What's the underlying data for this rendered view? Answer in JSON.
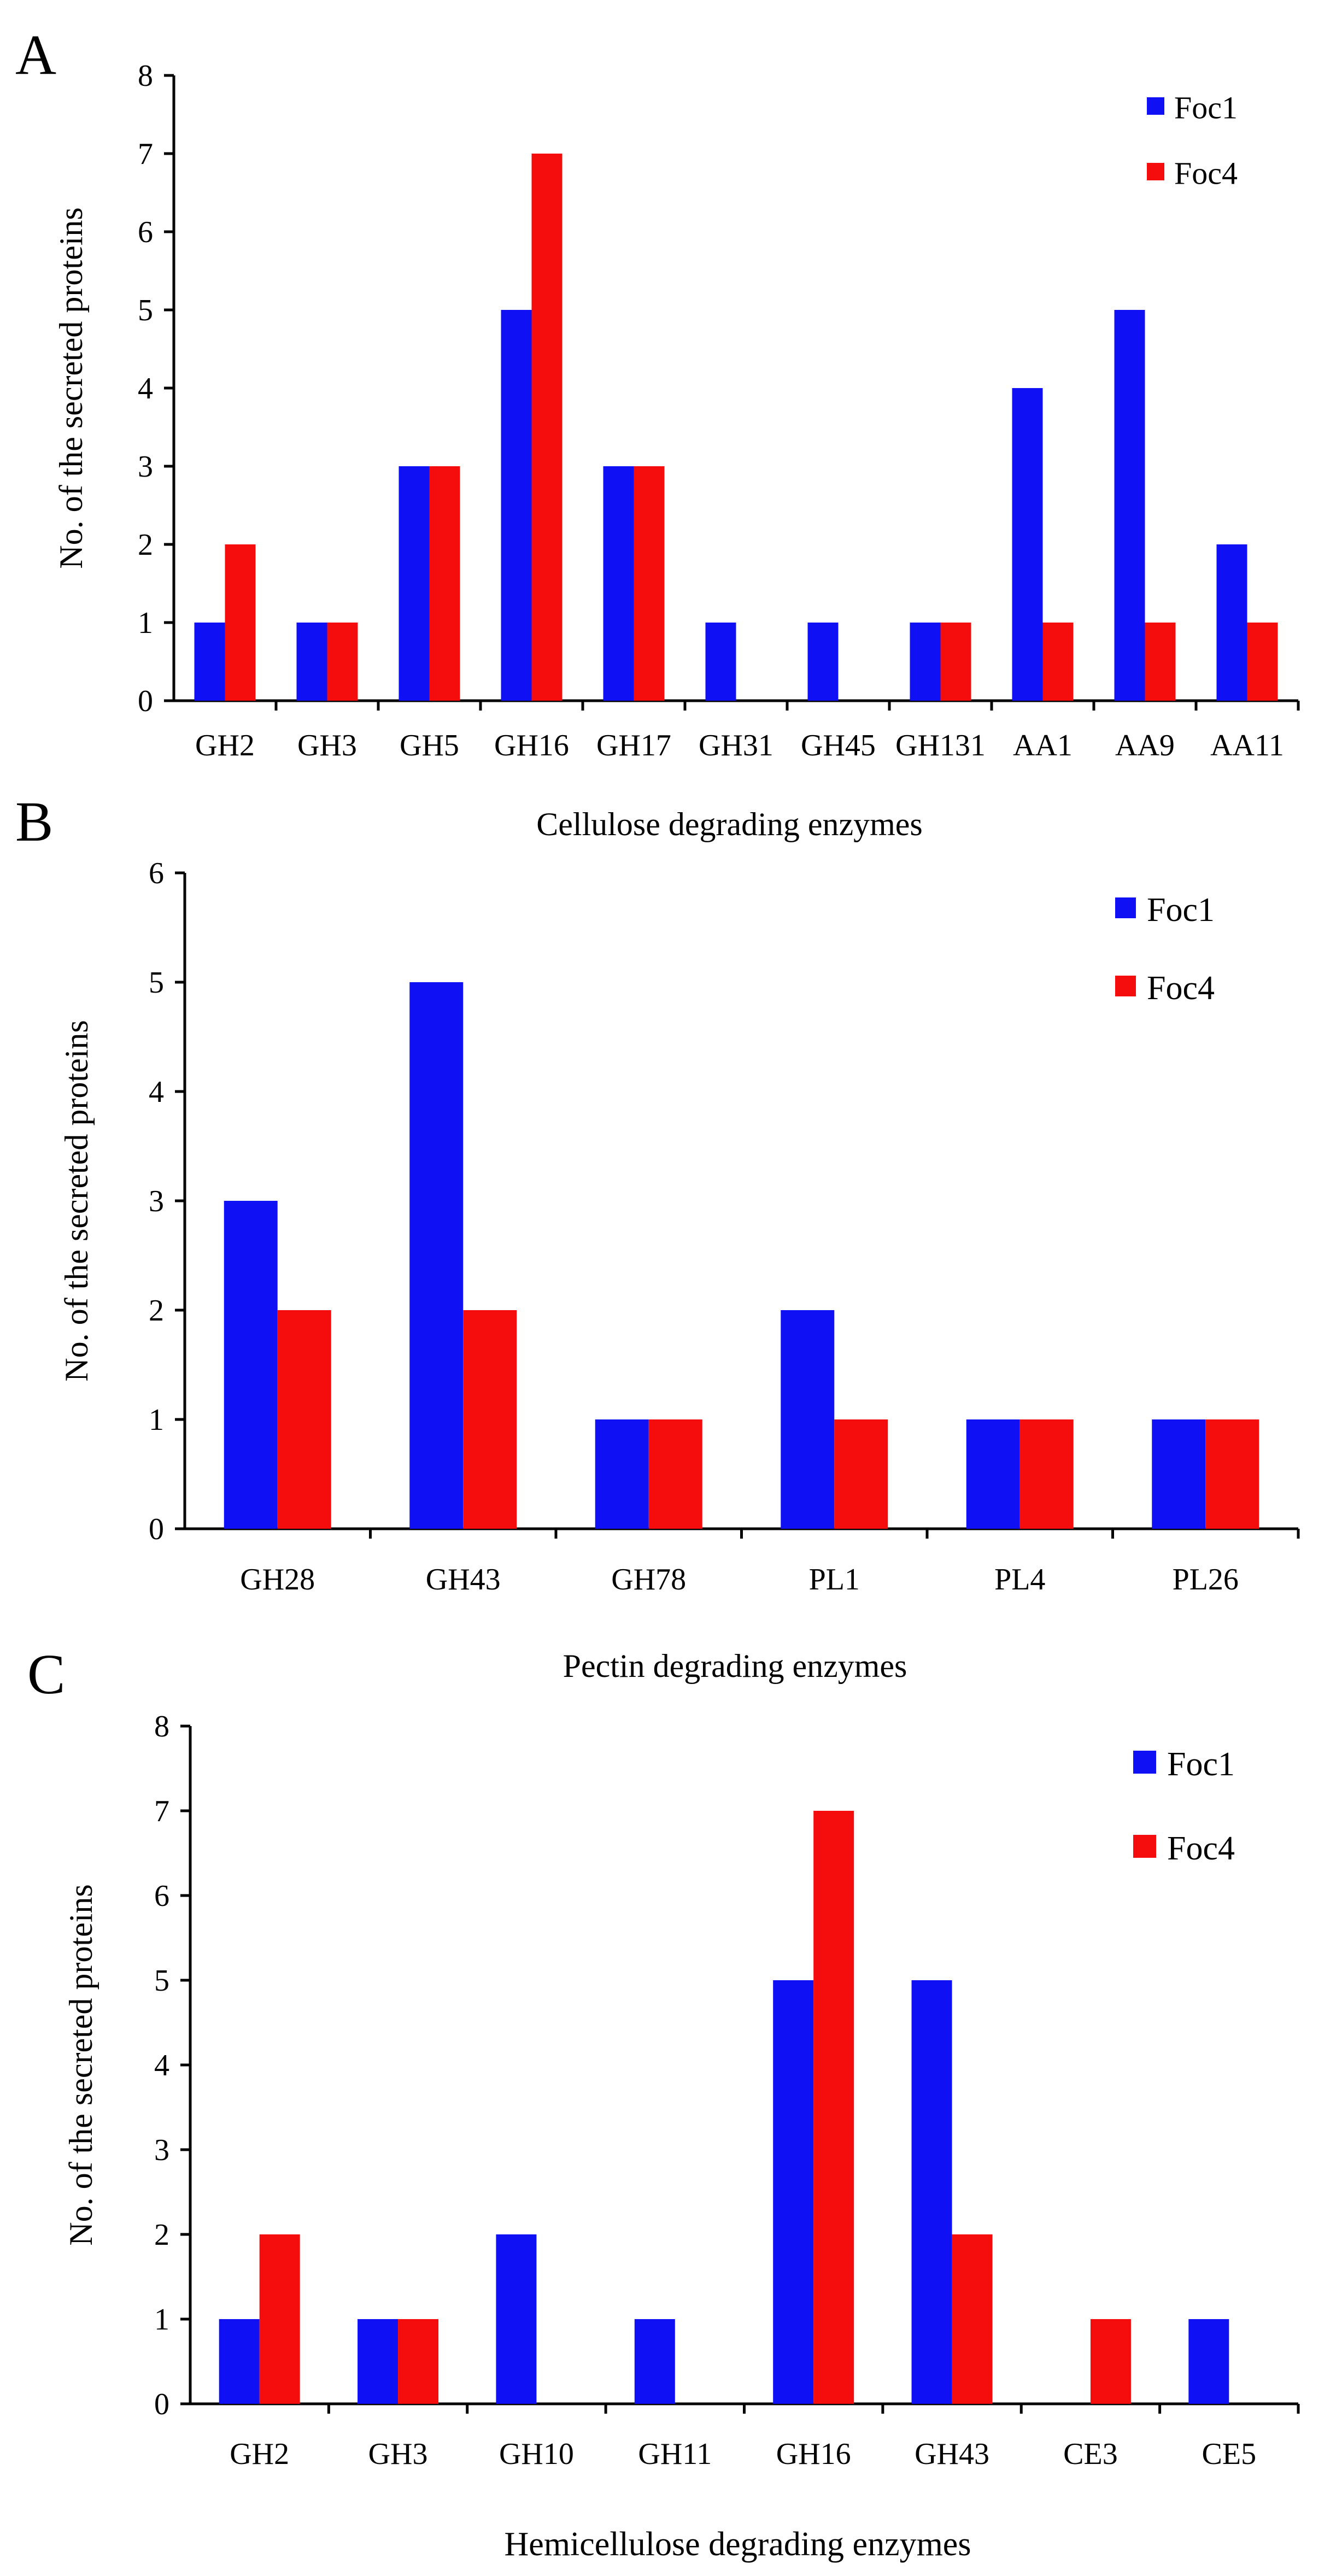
{
  "figure": {
    "colors": {
      "foc1": "#1010F5",
      "foc4": "#F50D0D",
      "axis": "#000000"
    }
  },
  "chart_data": [
    {
      "panel_label": "A",
      "type": "bar",
      "xlabel": "Cellulose degrading enzymes",
      "ylabel": "No. of the secreted proteins",
      "ylim": [
        0,
        8
      ],
      "yticks": [
        "0",
        "1",
        "2",
        "3",
        "4",
        "5",
        "6",
        "7",
        "8"
      ],
      "legend_position": "top-right",
      "categories": [
        "GH2",
        "GH3",
        "GH5",
        "GH16",
        "GH17",
        "GH31",
        "GH45",
        "GH131",
        "AA1",
        "AA9",
        "AA11"
      ],
      "series": [
        {
          "name": "Foc1",
          "color": "#1010F5",
          "values": [
            1,
            1,
            3,
            5,
            3,
            1,
            1,
            1,
            4,
            5,
            2
          ]
        },
        {
          "name": "Foc4",
          "color": "#F50D0D",
          "values": [
            2,
            1,
            3,
            7,
            3,
            0,
            0,
            1,
            1,
            1,
            1
          ]
        }
      ]
    },
    {
      "panel_label": "B",
      "type": "bar",
      "xlabel": "Pectin degrading enzymes",
      "ylabel": "No. of the secreted proteins",
      "ylim": [
        0,
        6
      ],
      "yticks": [
        "0",
        "1",
        "2",
        "3",
        "4",
        "5",
        "6"
      ],
      "legend_position": "top-right",
      "categories": [
        "GH28",
        "GH43",
        "GH78",
        "PL1",
        "PL4",
        "PL26"
      ],
      "series": [
        {
          "name": "Foc1",
          "color": "#1010F5",
          "values": [
            3,
            5,
            1,
            2,
            1,
            1
          ]
        },
        {
          "name": "Foc4",
          "color": "#F50D0D",
          "values": [
            2,
            2,
            1,
            1,
            1,
            1
          ]
        }
      ]
    },
    {
      "panel_label": "C",
      "type": "bar",
      "xlabel": "Hemicellulose degrading enzymes",
      "ylabel": "No. of the secreted proteins",
      "ylim": [
        0,
        8
      ],
      "yticks": [
        "0",
        "1",
        "2",
        "3",
        "4",
        "5",
        "6",
        "7",
        "8"
      ],
      "legend_position": "top-right",
      "categories": [
        "GH2",
        "GH3",
        "GH10",
        "GH11",
        "GH16",
        "GH43",
        "CE3",
        "CE5"
      ],
      "series": [
        {
          "name": "Foc1",
          "color": "#1010F5",
          "values": [
            1,
            1,
            2,
            1,
            5,
            5,
            0,
            1
          ]
        },
        {
          "name": "Foc4",
          "color": "#F50D0D",
          "values": [
            2,
            1,
            0,
            0,
            7,
            2,
            1,
            0
          ]
        }
      ]
    }
  ]
}
